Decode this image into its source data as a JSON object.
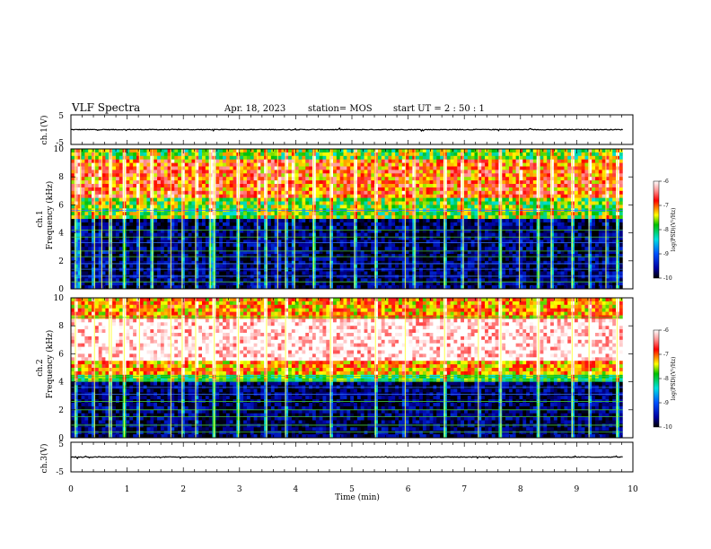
{
  "header": {
    "title": "VLF Spectra",
    "date": "Apr. 18, 2023",
    "station": "station= MOS",
    "start": "start  UT =   2 : 50 : 1"
  },
  "chart_data": [
    {
      "type": "line",
      "panel": "ch1-voltage",
      "ylabel": "ch.1(V)",
      "ylim": [
        -5,
        5
      ],
      "yticklabels": [
        "5",
        "-5"
      ],
      "xlim": [
        0,
        10
      ],
      "series": [
        {
          "description_level": 0
        }
      ]
    },
    {
      "type": "heatmap",
      "panel": "ch1-spectrogram",
      "ylabel_line1": "ch.1",
      "ylabel_line2": "Frequency (kHz)",
      "ylim": [
        0,
        10
      ],
      "yticklabels": [
        "0",
        "2",
        "4",
        "6",
        "8",
        "10"
      ],
      "xlim": [
        0,
        10
      ],
      "colorbar": {
        "label": "log(PSD)(V²/Hz)",
        "range": [
          -10,
          -6
        ],
        "ticks": [
          "-6",
          "-7",
          "-8",
          "-9",
          "-10"
        ]
      },
      "emission_band_khz": [
        5,
        10
      ],
      "spike_minutes": [
        0.08,
        0.17,
        0.42,
        0.55,
        0.68,
        0.72,
        0.95,
        1.22,
        1.45,
        1.78,
        1.98,
        2.22,
        2.48,
        2.55,
        2.98,
        3.32,
        3.48,
        3.68,
        3.82,
        3.98,
        4.32,
        4.62,
        5.05,
        5.42,
        5.95,
        6.12,
        6.65,
        6.98,
        7.25,
        7.65,
        7.98,
        8.32,
        8.55,
        8.92,
        9.22,
        9.52,
        9.72
      ]
    },
    {
      "type": "heatmap",
      "panel": "ch2-spectrogram",
      "ylabel_line1": "ch.2",
      "ylabel_line2": "Frequency (kHz)",
      "ylim": [
        0,
        10
      ],
      "yticklabels": [
        "0",
        "2",
        "4",
        "6",
        "8",
        "10"
      ],
      "xlim": [
        0,
        10
      ],
      "colorbar": {
        "label": "log(PSD)(V²/Hz)",
        "range": [
          -10,
          -6
        ],
        "ticks": [
          "-6",
          "-7",
          "-8",
          "-9",
          "-10"
        ]
      },
      "emission_band_khz": [
        4,
        10
      ],
      "spike_minutes": [
        0.08,
        0.42,
        0.68,
        0.72,
        0.95,
        1.22,
        1.78,
        1.98,
        2.22,
        2.55,
        2.98,
        3.48,
        3.82,
        4.62,
        5.42,
        5.95,
        6.65,
        7.25,
        7.65,
        8.32,
        8.92,
        9.22,
        9.72
      ]
    },
    {
      "type": "line",
      "panel": "ch3-voltage",
      "ylabel": "ch.3(V)",
      "ylim": [
        -5,
        5
      ],
      "yticklabels": [
        "5",
        "-5"
      ],
      "xlim": [
        0,
        10
      ],
      "series": [
        {
          "description_level": 0
        }
      ]
    }
  ],
  "xaxis": {
    "label": "Time  (min)",
    "ticklabels": [
      "0",
      "1",
      "2",
      "3",
      "4",
      "5",
      "6",
      "7",
      "8",
      "9",
      "10"
    ]
  }
}
